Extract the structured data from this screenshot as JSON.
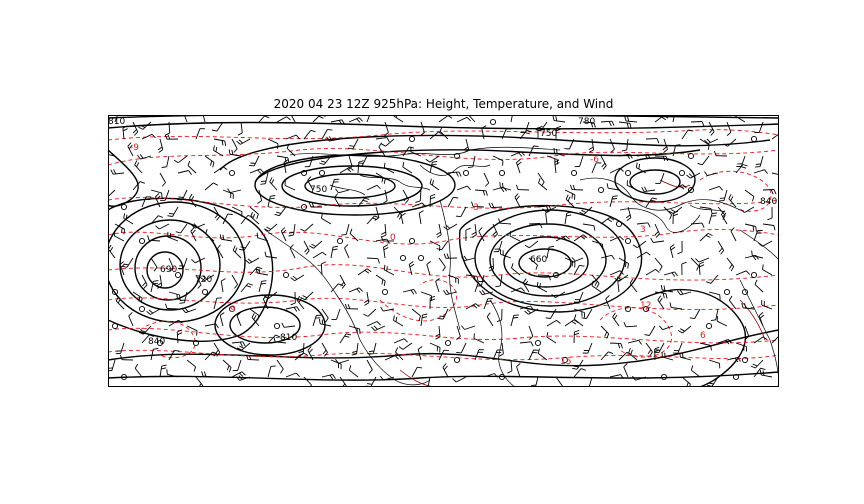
{
  "figure": {
    "title": "2020 04 23 12Z 925hPa: Height, Temperature, and Wind"
  },
  "legend_colors": {
    "height_contours": "#000000",
    "temperature_contours": "#e31a1c",
    "coastlines": "#000000",
    "background": "#ffffff"
  },
  "contour_labels": {
    "height": [
      "750",
      "780",
      "810",
      "750",
      "660",
      "690",
      "720",
      "810",
      "840",
      "840"
    ],
    "temperature": [
      "-9",
      "0",
      "-3",
      "9",
      "12",
      "-6",
      "3",
      "6",
      "15"
    ]
  },
  "icons": {
    "wind_barb": "wind-barb-icon",
    "calm_wind": "calm-circle-icon"
  }
}
